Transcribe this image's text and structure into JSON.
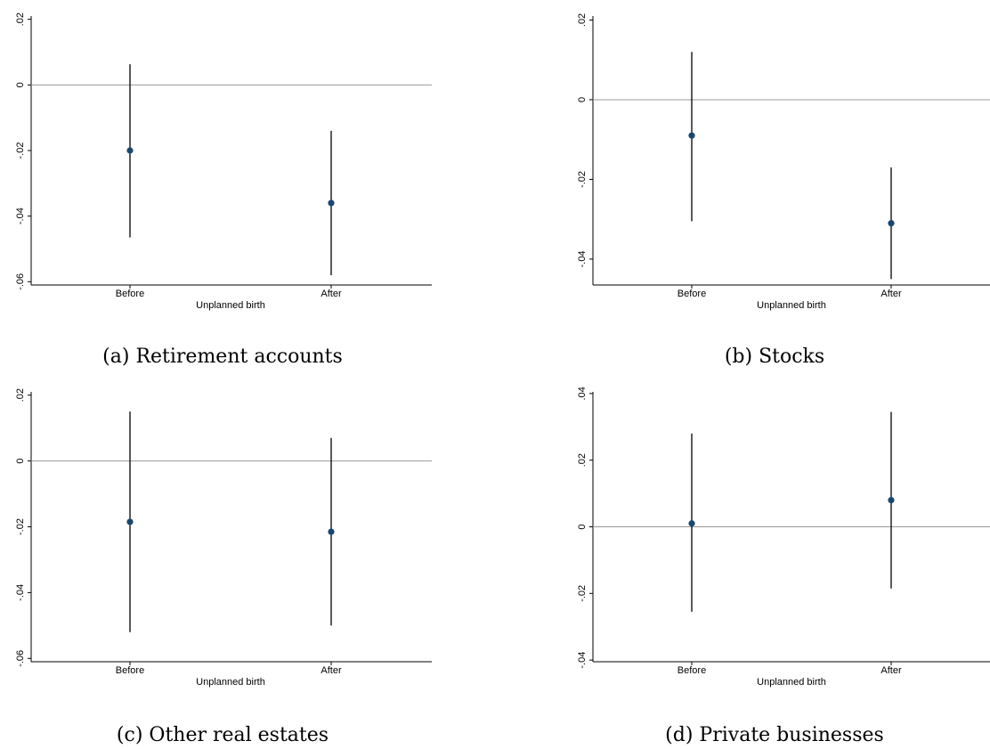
{
  "figure": {
    "panels": [
      {
        "caption": "(a) Retirement accounts"
      },
      {
        "caption": "(b) Stocks"
      },
      {
        "caption": "(c) Other real estates"
      },
      {
        "caption": "(d) Private businesses"
      }
    ]
  },
  "colors": {
    "point": "#1a476f",
    "ci_line": "#000000",
    "zero_line": "#999999",
    "axis": "#000000"
  },
  "chart_data": [
    {
      "type": "scatter",
      "title": "",
      "xlabel": "Unplanned birth",
      "ylabel": "",
      "categories": [
        "Before",
        "After"
      ],
      "yticks": [
        ".02",
        "0",
        "-.02",
        "-.04",
        "-.06"
      ],
      "ytick_values": [
        0.02,
        0,
        -0.02,
        -0.04,
        -0.06
      ],
      "ylim": [
        -0.061,
        0.021
      ],
      "estimates": [
        -0.02,
        -0.036
      ],
      "ci_low": [
        -0.0465,
        -0.058
      ],
      "ci_high": [
        0.0063,
        -0.014
      ],
      "reference_line": 0,
      "grid": false
    },
    {
      "type": "scatter",
      "title": "",
      "xlabel": "Unplanned birth",
      "ylabel": "",
      "categories": [
        "Before",
        "After"
      ],
      "yticks": [
        ".02",
        "0",
        "-.02",
        "-.04"
      ],
      "ytick_values": [
        0.02,
        0,
        -0.02,
        -0.04
      ],
      "ylim": [
        -0.0465,
        0.021
      ],
      "estimates": [
        -0.009,
        -0.031
      ],
      "ci_low": [
        -0.0305,
        -0.045
      ],
      "ci_high": [
        0.012,
        -0.017
      ],
      "reference_line": 0,
      "grid": false
    },
    {
      "type": "scatter",
      "title": "",
      "xlabel": "Unplanned birth",
      "ylabel": "",
      "categories": [
        "Before",
        "After"
      ],
      "yticks": [
        ".02",
        "0",
        "-.02",
        "-.04",
        "-.06"
      ],
      "ytick_values": [
        0.02,
        0,
        -0.02,
        -0.04,
        -0.06
      ],
      "ylim": [
        -0.061,
        0.021
      ],
      "estimates": [
        -0.0185,
        -0.0215
      ],
      "ci_low": [
        -0.052,
        -0.05
      ],
      "ci_high": [
        0.015,
        0.007
      ],
      "reference_line": 0,
      "grid": false
    },
    {
      "type": "scatter",
      "title": "",
      "xlabel": "Unplanned birth",
      "ylabel": "",
      "categories": [
        "Before",
        "After"
      ],
      "yticks": [
        ".04",
        ".02",
        "0",
        "-.02",
        "-.04"
      ],
      "ytick_values": [
        0.04,
        0.02,
        0,
        -0.02,
        -0.04
      ],
      "ylim": [
        -0.0405,
        0.0405
      ],
      "estimates": [
        0.001,
        0.008
      ],
      "ci_low": [
        -0.0255,
        -0.0185
      ],
      "ci_high": [
        0.028,
        0.0345
      ],
      "reference_line": 0,
      "grid": false
    }
  ]
}
